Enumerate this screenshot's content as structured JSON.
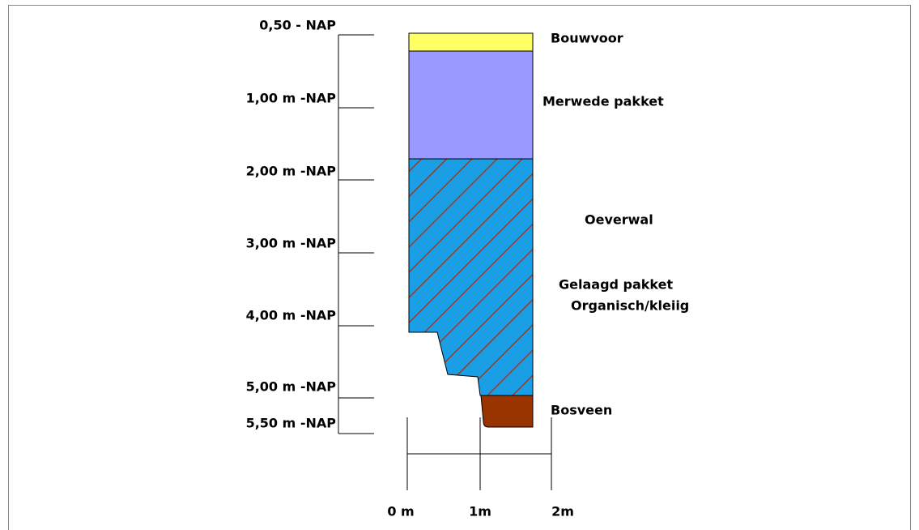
{
  "depth_labels": [
    "0,50 - NAP",
    "1,00 m -NAP",
    "2,00 m -NAP",
    "3,00 m -NAP",
    "4,00 m -NAP",
    "5,00 m -NAP",
    "5,50 m -NAP"
  ],
  "layers": [
    "Bouwvoor",
    "Merwede pakket",
    "Oeverwal",
    "Gelaagd pakket",
    "Organisch/kleiig",
    "Bosveen"
  ],
  "scale_labels": [
    "0 m",
    "1m",
    "2m"
  ]
}
